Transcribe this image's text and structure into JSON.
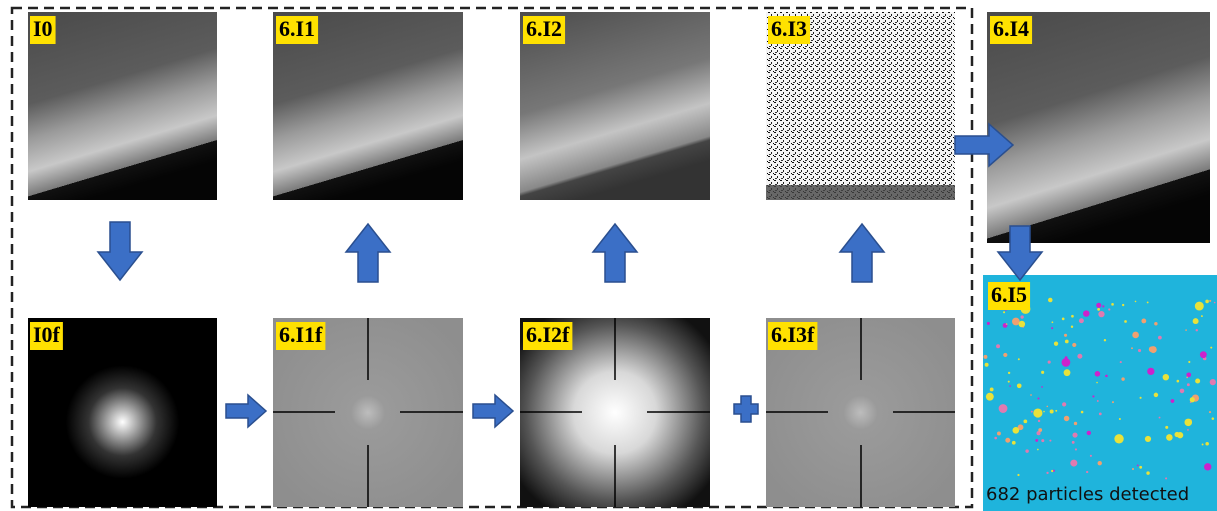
{
  "panels": [
    {
      "label": "I0"
    },
    {
      "label": "6.I1"
    },
    {
      "label": "6.I2"
    },
    {
      "label": "6.I3"
    },
    {
      "label": "6.I4"
    },
    {
      "label": "I0f"
    },
    {
      "label": "6.I1f"
    },
    {
      "label": "6.I2f"
    },
    {
      "label": "6.I3f"
    },
    {
      "label": "6.I5"
    }
  ],
  "caption": "682 particles detected"
}
